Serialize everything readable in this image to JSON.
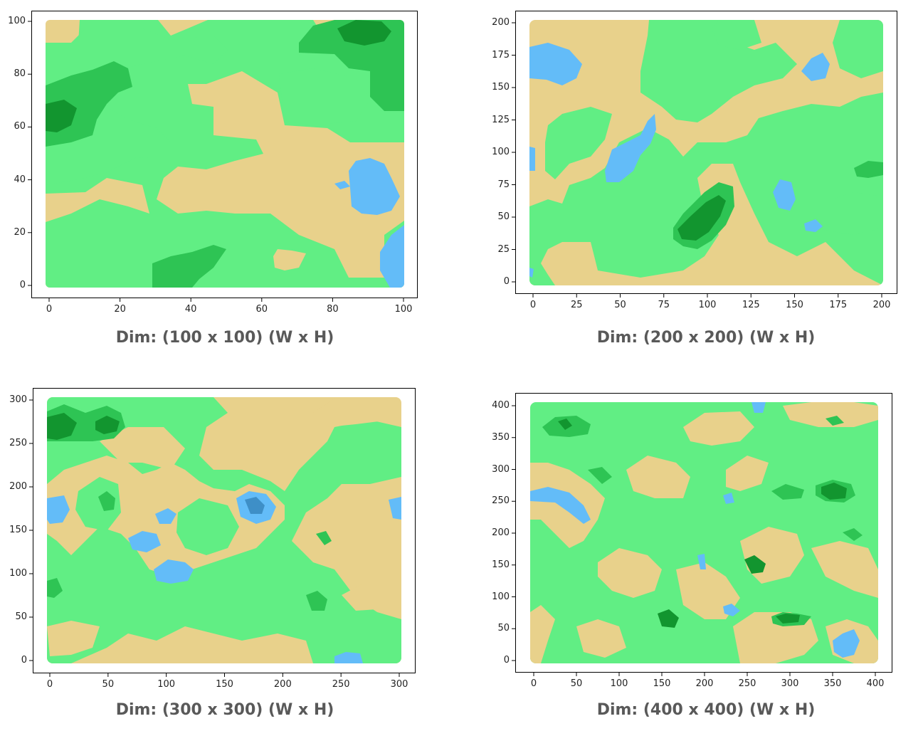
{
  "colors": {
    "sand": "#e8d18b",
    "grass": "#61ee84",
    "forest": "#2ec454",
    "deep_forest": "#12952f",
    "water": "#63bcf8",
    "deep_water": "#3e8fc7"
  },
  "chart_data": [
    {
      "type": "heatmap",
      "title": "",
      "caption": "Dim: (100 x 100) (W x H)",
      "xlim": [
        0,
        100
      ],
      "ylim": [
        0,
        100
      ],
      "xticks": [
        "0",
        "20",
        "40",
        "60",
        "80",
        "100"
      ],
      "yticks": [
        "0",
        "20",
        "40",
        "60",
        "80",
        "100"
      ],
      "xtick_values": [
        0,
        20,
        40,
        60,
        80,
        100
      ],
      "ytick_values": [
        0,
        20,
        40,
        60,
        80,
        100
      ],
      "grid": false,
      "categories": [
        "sand",
        "grass",
        "forest",
        "deep forest",
        "water"
      ]
    },
    {
      "type": "heatmap",
      "title": "",
      "caption": "Dim: (200 x 200) (W x H)",
      "xlim": [
        0,
        200
      ],
      "ylim": [
        0,
        200
      ],
      "xticks": [
        "0",
        "25",
        "50",
        "75",
        "100",
        "125",
        "150",
        "175",
        "200"
      ],
      "yticks": [
        "0",
        "25",
        "50",
        "75",
        "100",
        "125",
        "150",
        "175",
        "200"
      ],
      "xtick_values": [
        0,
        25,
        50,
        75,
        100,
        125,
        150,
        175,
        200
      ],
      "ytick_values": [
        0,
        25,
        50,
        75,
        100,
        125,
        150,
        175,
        200
      ],
      "grid": false,
      "categories": [
        "sand",
        "grass",
        "forest",
        "deep forest",
        "water"
      ]
    },
    {
      "type": "heatmap",
      "title": "",
      "caption": "Dim: (300 x 300) (W x H)",
      "xlim": [
        0,
        300
      ],
      "ylim": [
        0,
        300
      ],
      "xticks": [
        "0",
        "50",
        "100",
        "150",
        "200",
        "250",
        "300"
      ],
      "yticks": [
        "0",
        "50",
        "100",
        "150",
        "200",
        "250",
        "300"
      ],
      "xtick_values": [
        0,
        50,
        100,
        150,
        200,
        250,
        300
      ],
      "ytick_values": [
        0,
        50,
        100,
        150,
        200,
        250,
        300
      ],
      "grid": false,
      "categories": [
        "sand",
        "grass",
        "forest",
        "deep forest",
        "water",
        "deep water"
      ]
    },
    {
      "type": "heatmap",
      "title": "",
      "caption": "Dim: (400 x 400) (W x H)",
      "xlim": [
        0,
        400
      ],
      "ylim": [
        0,
        400
      ],
      "xticks": [
        "0",
        "50",
        "100",
        "150",
        "200",
        "250",
        "300",
        "350",
        "400"
      ],
      "yticks": [
        "0",
        "50",
        "100",
        "150",
        "200",
        "250",
        "300",
        "350",
        "400"
      ],
      "xtick_values": [
        0,
        50,
        100,
        150,
        200,
        250,
        300,
        350,
        400
      ],
      "ytick_values": [
        0,
        50,
        100,
        150,
        200,
        250,
        300,
        350,
        400
      ],
      "grid": false,
      "categories": [
        "sand",
        "grass",
        "forest",
        "deep forest",
        "water"
      ]
    }
  ]
}
